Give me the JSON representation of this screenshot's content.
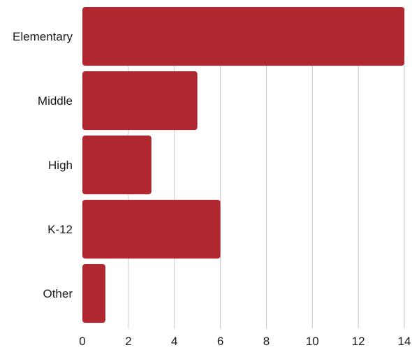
{
  "chart_data": {
    "type": "bar",
    "orientation": "horizontal",
    "categories": [
      "Elementary",
      "Middle",
      "High",
      "K-12",
      "Other"
    ],
    "values": [
      14,
      5,
      3,
      6,
      1
    ],
    "title": "",
    "xlabel": "",
    "ylabel": "",
    "xlim": [
      0,
      14
    ],
    "xticks": [
      0,
      2,
      4,
      6,
      8,
      10,
      12,
      14
    ],
    "grid": true,
    "legend": "none",
    "bar_color": "#b0272f",
    "grid_color": "#c8c8c8"
  }
}
